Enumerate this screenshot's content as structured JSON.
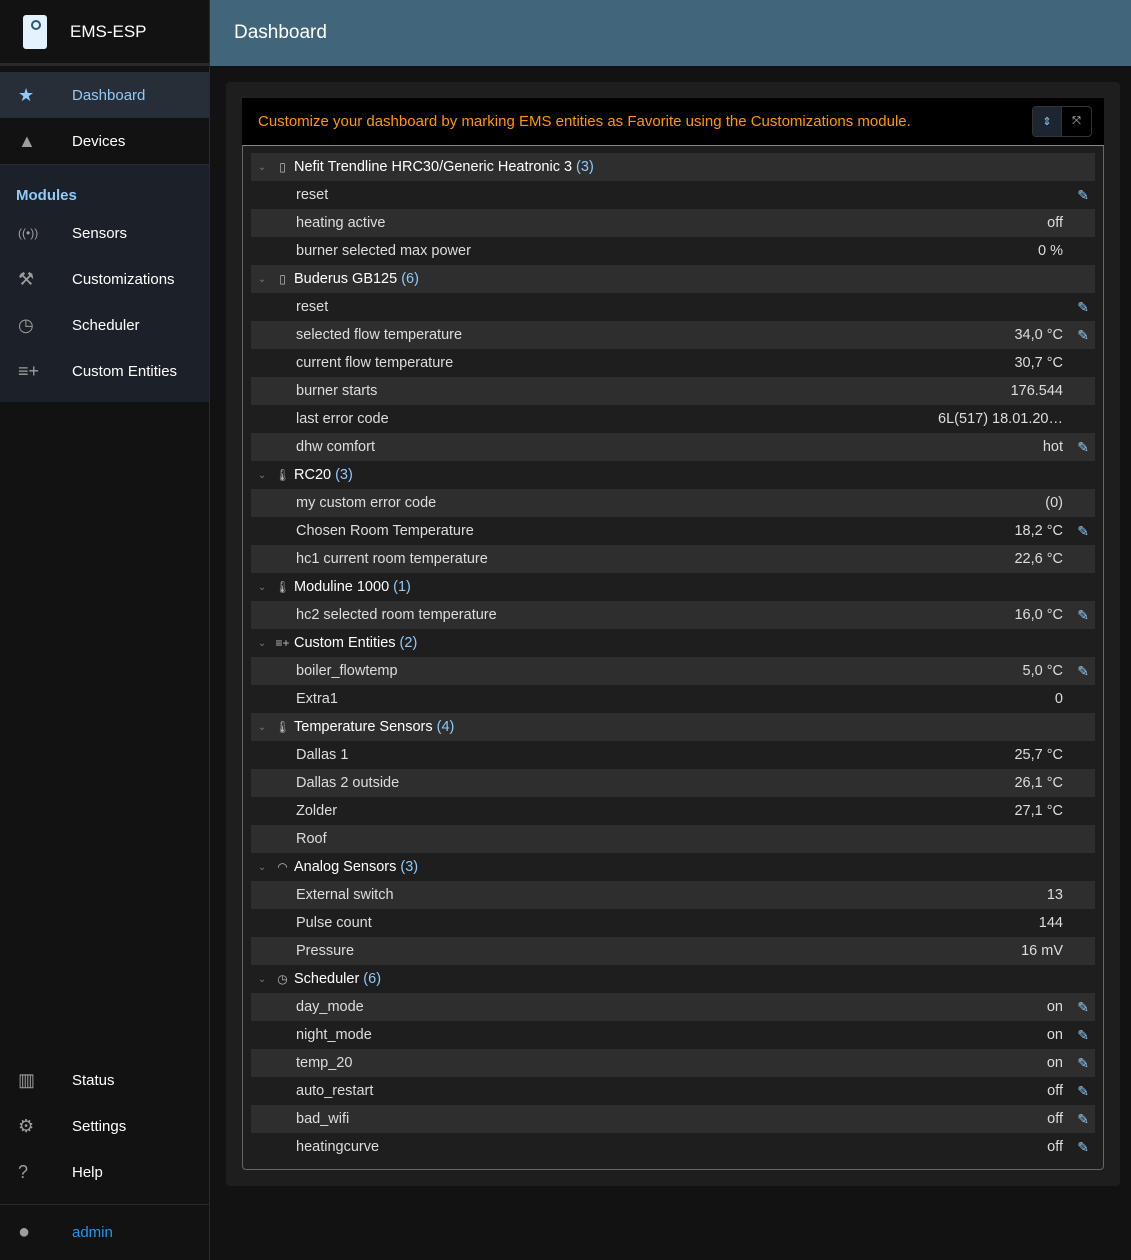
{
  "app": {
    "title": "EMS-ESP"
  },
  "header": {
    "title": "Dashboard"
  },
  "sidebar": {
    "main": [
      {
        "label": "Dashboard",
        "icon": "star-icon",
        "active": true
      },
      {
        "label": "Devices",
        "icon": "category-icon"
      }
    ],
    "modules_title": "Modules",
    "modules": [
      {
        "label": "Sensors",
        "icon": "sensors-icon"
      },
      {
        "label": "Customizations",
        "icon": "build-icon"
      },
      {
        "label": "Scheduler",
        "icon": "more-time-icon"
      },
      {
        "label": "Custom Entities",
        "icon": "playlist-add-icon"
      }
    ],
    "bottom": [
      {
        "label": "Status",
        "icon": "assessment-icon"
      },
      {
        "label": "Settings",
        "icon": "settings-icon"
      },
      {
        "label": "Help",
        "icon": "live-help-icon"
      }
    ],
    "user": "admin"
  },
  "colors": {
    "accent": "#90caf9",
    "banner_text": "#ff9800",
    "topbar": "#41657a",
    "user_link": "#2196f3"
  },
  "banner": {
    "text": "Customize your dashboard by marking EMS entities as Favorite using the Customizations module.",
    "expand_icon": "unfold-more-icon",
    "collapse_icon": "unfold-less-icon"
  },
  "groups": [
    {
      "name": "Nefit Trendline HRC30/Generic Heatronic 3",
      "count": "(3)",
      "icon": "boiler-icon",
      "items": [
        {
          "name": "reset",
          "value": "",
          "editable": true
        },
        {
          "name": "heating active",
          "value": "off",
          "editable": false
        },
        {
          "name": "burner selected max power",
          "value": "0 %",
          "editable": false
        }
      ]
    },
    {
      "name": "Buderus GB125",
      "count": "(6)",
      "icon": "boiler-icon",
      "items": [
        {
          "name": "reset",
          "value": "",
          "editable": true
        },
        {
          "name": "selected flow temperature",
          "value": "34,0 °C",
          "editable": true
        },
        {
          "name": "current flow temperature",
          "value": "30,7 °C",
          "editable": false
        },
        {
          "name": "burner starts",
          "value": "176.544",
          "editable": false
        },
        {
          "name": "last error code",
          "value": "6L(517) 18.01.20…",
          "editable": false
        },
        {
          "name": "dhw comfort",
          "value": "hot",
          "editable": true
        }
      ]
    },
    {
      "name": "RC20",
      "count": "(3)",
      "icon": "thermostat-auto-icon",
      "items": [
        {
          "name": "my custom error code",
          "value": "(0)",
          "editable": false
        },
        {
          "name": "Chosen Room Temperature",
          "value": "18,2 °C",
          "editable": true
        },
        {
          "name": "hc1 current room temperature",
          "value": "22,6 °C",
          "editable": false
        }
      ]
    },
    {
      "name": "Moduline 1000",
      "count": "(1)",
      "icon": "thermostat-auto-icon",
      "items": [
        {
          "name": "hc2 selected room temperature",
          "value": "16,0 °C",
          "editable": true
        }
      ]
    },
    {
      "name": "Custom Entities",
      "count": "(2)",
      "icon": "playlist-add-icon",
      "items": [
        {
          "name": "boiler_flowtemp",
          "value": "5,0 °C",
          "editable": true
        },
        {
          "name": "Extra1",
          "value": "0",
          "editable": false
        }
      ]
    },
    {
      "name": "Temperature Sensors",
      "count": "(4)",
      "icon": "thermometer-icon",
      "items": [
        {
          "name": "Dallas 1",
          "value": "25,7 °C",
          "editable": false
        },
        {
          "name": "Dallas 2 outside",
          "value": "26,1 °C",
          "editable": false
        },
        {
          "name": "Zolder",
          "value": "27,1 °C",
          "editable": false
        },
        {
          "name": "Roof",
          "value": "",
          "editable": false
        }
      ]
    },
    {
      "name": "Analog Sensors",
      "count": "(3)",
      "icon": "gauge-icon",
      "items": [
        {
          "name": "External switch",
          "value": "13",
          "editable": false
        },
        {
          "name": "Pulse count",
          "value": "144",
          "editable": false
        },
        {
          "name": "Pressure",
          "value": "16 mV",
          "editable": false
        }
      ]
    },
    {
      "name": "Scheduler",
      "count": "(6)",
      "icon": "more-time-icon",
      "items": [
        {
          "name": "day_mode",
          "value": "on",
          "editable": true
        },
        {
          "name": "night_mode",
          "value": "on",
          "editable": true
        },
        {
          "name": "temp_20",
          "value": "on",
          "editable": true
        },
        {
          "name": "auto_restart",
          "value": "off",
          "editable": true
        },
        {
          "name": "bad_wifi",
          "value": "off",
          "editable": true
        },
        {
          "name": "heatingcurve",
          "value": "off",
          "editable": true
        }
      ]
    }
  ]
}
